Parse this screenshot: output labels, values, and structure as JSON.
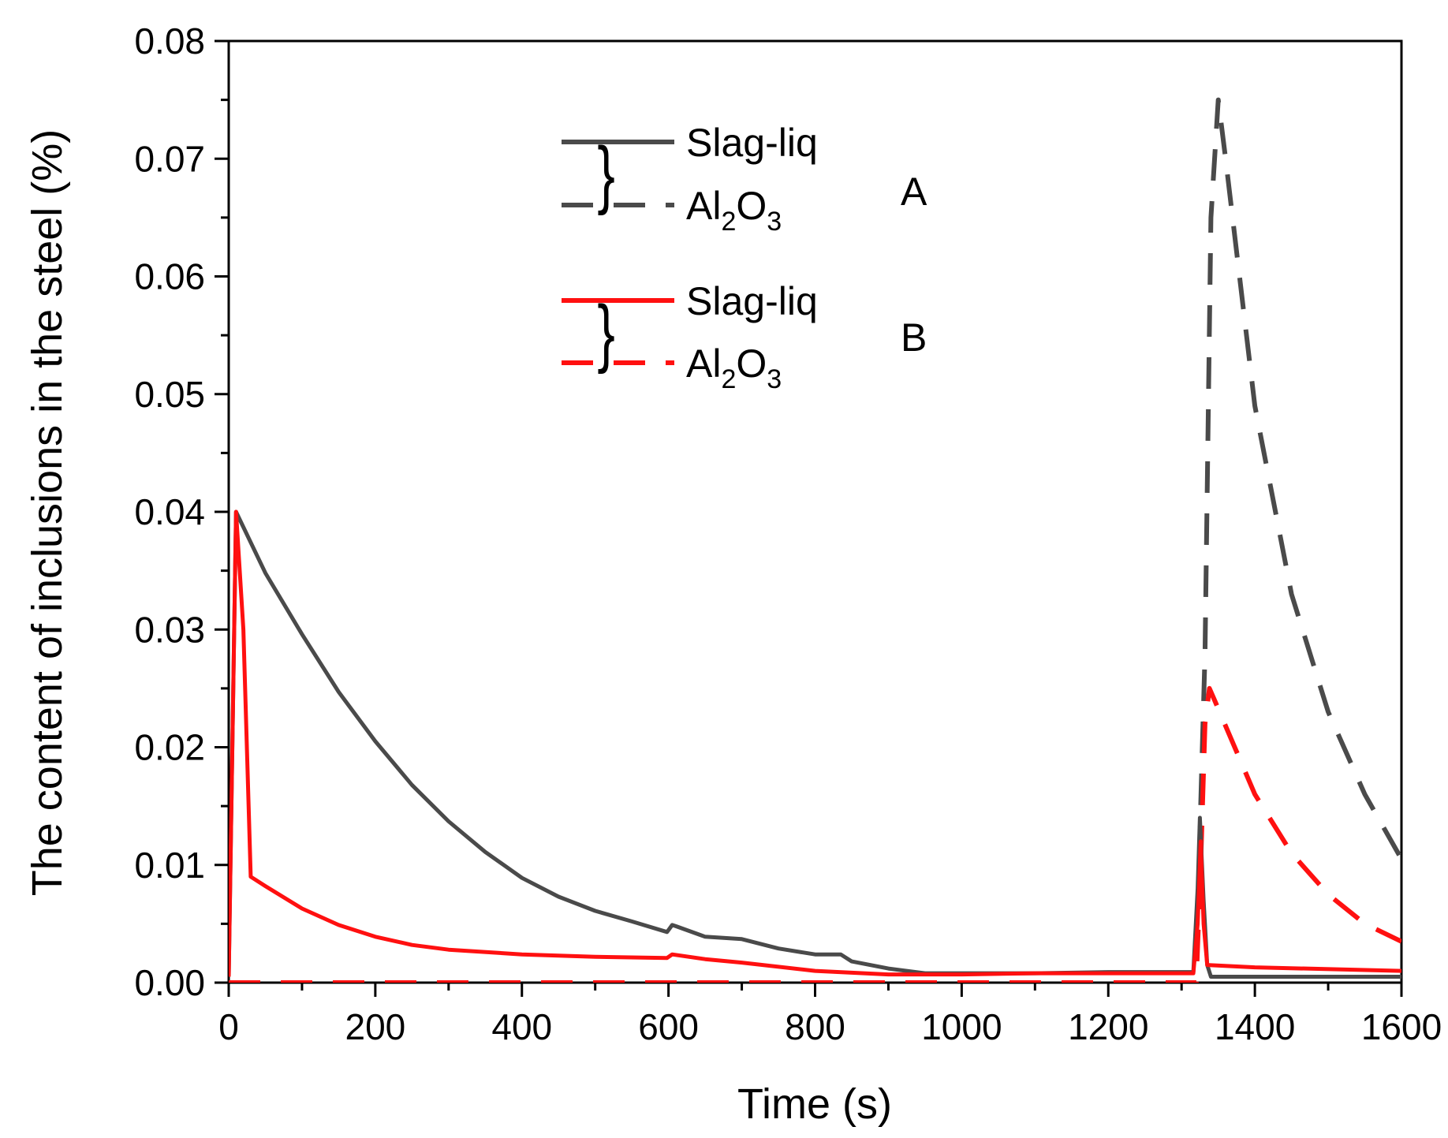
{
  "chart_data": {
    "type": "line",
    "title": "",
    "xlabel": "Time (s)",
    "ylabel": "The content of inclusions in the steel (%)",
    "xlim": [
      0,
      1600
    ],
    "ylim": [
      0,
      0.08
    ],
    "x_ticks": [
      0,
      200,
      400,
      600,
      800,
      1000,
      1200,
      1400,
      1600
    ],
    "x_tick_labels": [
      "0",
      "200",
      "400",
      "600",
      "800",
      "1000",
      "1200",
      "1400",
      "1600"
    ],
    "y_ticks": [
      0,
      0.01,
      0.02,
      0.03,
      0.04,
      0.05,
      0.06,
      0.07,
      0.08
    ],
    "y_tick_labels": [
      "0.00",
      "0.01",
      "0.02",
      "0.03",
      "0.04",
      "0.05",
      "0.06",
      "0.07",
      "0.08"
    ],
    "grid": false,
    "legend_position": "top-center",
    "groups": [
      {
        "label": "A",
        "series_names": [
          "A Slag-liq",
          "A Al2O3"
        ]
      },
      {
        "label": "B",
        "series_names": [
          "B Slag-liq",
          "B Al2O3"
        ]
      }
    ],
    "series": [
      {
        "name": "A Slag-liq",
        "legend_label": "Slag-liq",
        "group": "A",
        "color": "#4a4a4a",
        "dash": "solid",
        "x": [
          0,
          10,
          50,
          100,
          150,
          200,
          250,
          300,
          350,
          400,
          450,
          500,
          550,
          598,
          605,
          610,
          650,
          700,
          750,
          800,
          835,
          840,
          850,
          900,
          950,
          1000,
          1100,
          1200,
          1316,
          1322,
          1325,
          1330,
          1335,
          1340,
          1400,
          1500,
          1600
        ],
        "y": [
          0.0005,
          0.04,
          0.0348,
          0.0296,
          0.0247,
          0.0205,
          0.0168,
          0.0137,
          0.0111,
          0.0089,
          0.0073,
          0.0061,
          0.0052,
          0.0043,
          0.0049,
          0.0048,
          0.0039,
          0.0037,
          0.0029,
          0.0024,
          0.0024,
          0.0022,
          0.0018,
          0.0012,
          0.0008,
          0.0008,
          0.0008,
          0.0009,
          0.0009,
          0.008,
          0.014,
          0.007,
          0.0015,
          0.0005,
          0.0005,
          0.0005,
          0.0005
        ]
      },
      {
        "name": "A Al2O3",
        "legend_label": "Al2O3",
        "group": "A",
        "color": "#4a4a4a",
        "dash": "dashed",
        "x": [
          0,
          1320,
          1326,
          1332,
          1340,
          1350,
          1360,
          1400,
          1450,
          1500,
          1550,
          1600
        ],
        "y": [
          0,
          0,
          0.015,
          0.028,
          0.065,
          0.075,
          0.07,
          0.049,
          0.033,
          0.023,
          0.016,
          0.0105
        ]
      },
      {
        "name": "B Slag-liq",
        "legend_label": "Slag-liq",
        "group": "B",
        "color": "#ff1010",
        "dash": "solid",
        "x": [
          0,
          10,
          20,
          30,
          50,
          100,
          150,
          200,
          250,
          300,
          400,
          500,
          598,
          605,
          650,
          700,
          800,
          900,
          1000,
          1100,
          1200,
          1316,
          1322,
          1326,
          1330,
          1335,
          1400,
          1600
        ],
        "y": [
          0.0005,
          0.04,
          0.03,
          0.009,
          0.0082,
          0.0063,
          0.0049,
          0.0039,
          0.0032,
          0.0028,
          0.0024,
          0.0022,
          0.0021,
          0.0024,
          0.002,
          0.0017,
          0.001,
          0.0007,
          0.0007,
          0.0008,
          0.0008,
          0.0008,
          0.005,
          0.012,
          0.005,
          0.0015,
          0.0013,
          0.001
        ]
      },
      {
        "name": "B Al2O3",
        "legend_label": "Al2O3",
        "group": "B",
        "color": "#ff1010",
        "dash": "dashed",
        "x": [
          0,
          1320,
          1326,
          1332,
          1338,
          1345,
          1400,
          1450,
          1500,
          1550,
          1600
        ],
        "y": [
          0,
          0,
          0.01,
          0.022,
          0.025,
          0.024,
          0.016,
          0.011,
          0.0075,
          0.005,
          0.0035
        ]
      }
    ]
  }
}
